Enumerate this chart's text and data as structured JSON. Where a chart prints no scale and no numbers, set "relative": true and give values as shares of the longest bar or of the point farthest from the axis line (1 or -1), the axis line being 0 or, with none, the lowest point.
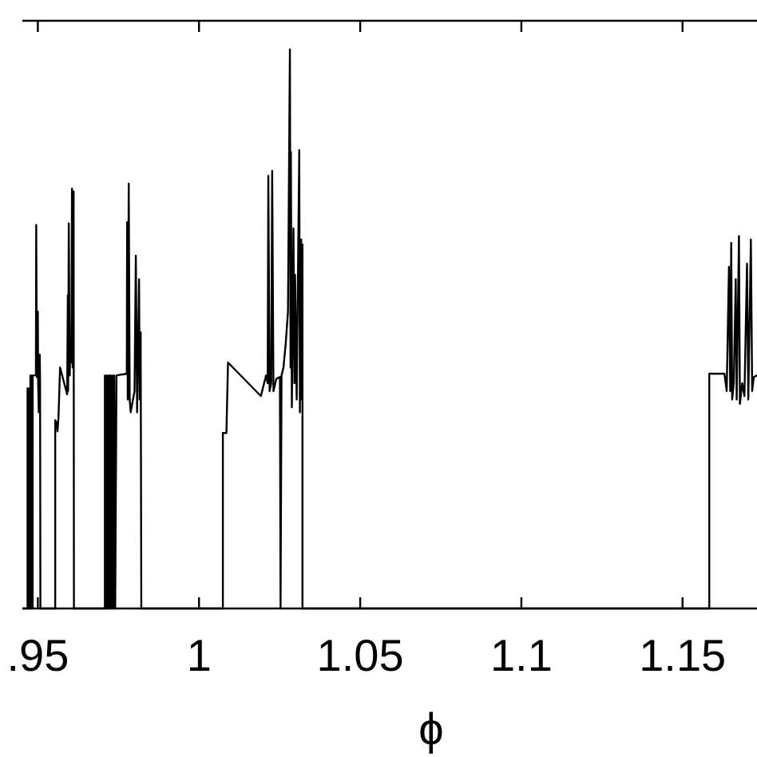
{
  "chart_data": {
    "type": "line",
    "xlabel": "ϕ",
    "relative": true,
    "xlim": [
      0.9452,
      1.1731
    ],
    "xticks": [
      {
        "value": 0.95,
        "label": ".95"
      },
      1,
      1.05,
      1.1,
      1.15
    ],
    "color": "#000000",
    "x": [
      0.9452,
      0.9468,
      0.9468,
      0.9471,
      0.9474,
      0.9476,
      0.9477,
      0.9479,
      0.9482,
      0.9484,
      0.9484,
      0.9494,
      0.9495,
      0.9497,
      0.95,
      0.9501,
      0.9503,
      0.9506,
      0.9507,
      0.9508,
      0.9554,
      0.9554,
      0.9559,
      0.9561,
      0.9564,
      0.9569,
      0.9591,
      0.9593,
      0.9594,
      0.9596,
      0.9599,
      0.9601,
      0.9604,
      0.9606,
      0.9608,
      0.9611,
      0.9612,
      0.9708,
      0.9708,
      0.9712,
      0.9714,
      0.9717,
      0.972,
      0.9723,
      0.9725,
      0.9729,
      0.9731,
      0.9735,
      0.9737,
      0.974,
      0.9744,
      0.9776,
      0.9777,
      0.9779,
      0.9782,
      0.9785,
      0.9788,
      0.98,
      0.9804,
      0.9808,
      0.9814,
      0.9816,
      0.9819,
      0.9821,
      1.0074,
      1.0074,
      1.0085,
      1.009,
      1.0192,
      1.0208,
      1.0213,
      1.0215,
      1.0219,
      1.0224,
      1.0227,
      1.0231,
      1.024,
      1.0251,
      1.0253,
      1.0256,
      1.0262,
      1.0269,
      1.0276,
      1.0282,
      1.0284,
      1.0285,
      1.0288,
      1.0293,
      1.0296,
      1.0298,
      1.0303,
      1.0311,
      1.0313,
      1.0317,
      1.0319,
      1.0321,
      1.0321,
      1.1583,
      1.1583,
      1.163,
      1.1637,
      1.1644,
      1.1648,
      1.1651,
      1.1654,
      1.1659,
      1.1665,
      1.1668,
      1.1675,
      1.1678,
      1.1685,
      1.1692,
      1.17,
      1.1704,
      1.1712,
      1.1716,
      1.1721,
      1.1731
    ],
    "values": [
      0,
      0,
      0.394,
      0,
      0.394,
      0,
      0.417,
      0,
      0.417,
      0,
      0.417,
      0.417,
      0.686,
      0.414,
      0.531,
      0.403,
      0.351,
      0.454,
      0.403,
      0,
      0,
      0.337,
      0.331,
      0.317,
      0.34,
      0.431,
      0.383,
      0.56,
      0.389,
      0.689,
      0.417,
      0.474,
      0.44,
      0.751,
      0.431,
      0.746,
      0,
      0,
      0.417,
      0,
      0.417,
      0,
      0.417,
      0,
      0.417,
      0,
      0.417,
      0,
      0.417,
      0,
      0.417,
      0.42,
      0.691,
      0.374,
      0.76,
      0.374,
      0.351,
      0.389,
      0.631,
      0.351,
      0.589,
      0.374,
      0.494,
      0,
      0,
      0.314,
      0.314,
      0.44,
      0.38,
      0.417,
      0.403,
      0.774,
      0.389,
      0.403,
      0.783,
      0.389,
      0.411,
      0.414,
      0,
      0.417,
      0.431,
      0.474,
      0.531,
      1,
      0.431,
      0.817,
      0.36,
      0.68,
      0.403,
      0.597,
      0.374,
      0.82,
      0.351,
      0.66,
      0.374,
      0.651,
      0,
      0,
      0.42,
      0.42,
      0.389,
      0.611,
      0.389,
      0.654,
      0.374,
      0.403,
      0.589,
      0.374,
      0.666,
      0.366,
      0.403,
      0.38,
      0.617,
      0.374,
      0.66,
      0.389,
      0.414,
      0.417
    ]
  }
}
